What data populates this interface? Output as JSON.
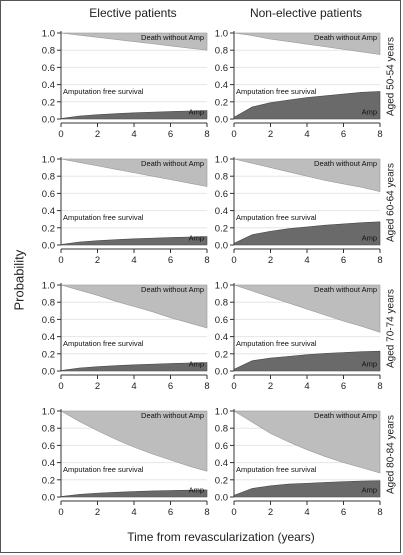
{
  "figure": {
    "ylabel": "Probability",
    "xlabel": "Time from revascularization (years)",
    "column_titles": [
      "Elective patients",
      "Non-elective patients"
    ],
    "row_titles": [
      "Aged 50-54 years",
      "Aged 60-64 years",
      "Aged 70-74 years",
      "Aged 80-84 years"
    ],
    "colors": {
      "death_band": "#bdbdbd",
      "amp_band": "#6a6a6a",
      "gridline": "#e6e6e6",
      "axis": "#333333"
    }
  },
  "chart_data": [
    {
      "type": "area",
      "column": "Elective patients",
      "row": "Aged 50-54 years",
      "x": [
        0,
        1,
        2,
        3,
        4,
        5,
        6,
        7,
        8
      ],
      "xticks": [
        0,
        2,
        4,
        6,
        8
      ],
      "yticks": [
        0.0,
        0.2,
        0.4,
        0.6,
        0.8,
        1.0
      ],
      "xlim": [
        0,
        8
      ],
      "ylim": [
        0,
        1
      ],
      "series": [
        {
          "name": "Amp",
          "values": [
            0.005,
            0.035,
            0.05,
            0.062,
            0.072,
            0.08,
            0.087,
            0.093,
            0.098
          ]
        },
        {
          "name": "Death without Amp",
          "values": [
            0.0,
            0.025,
            0.05,
            0.075,
            0.1,
            0.125,
            0.15,
            0.175,
            0.2
          ]
        }
      ],
      "labels": {
        "death": "Death without Amp",
        "middle": "Amputation free survival",
        "amp": "Amp"
      }
    },
    {
      "type": "area",
      "column": "Non-elective patients",
      "row": "Aged 50-54 years",
      "x": [
        0,
        1,
        2,
        3,
        4,
        5,
        6,
        7,
        8
      ],
      "xticks": [
        0,
        2,
        4,
        6,
        8
      ],
      "yticks": [
        0.0,
        0.2,
        0.4,
        0.6,
        0.8,
        1.0
      ],
      "xlim": [
        0,
        8
      ],
      "ylim": [
        0,
        1
      ],
      "series": [
        {
          "name": "Amp",
          "values": [
            0.02,
            0.14,
            0.19,
            0.22,
            0.25,
            0.27,
            0.29,
            0.31,
            0.32
          ]
        },
        {
          "name": "Death without Amp",
          "values": [
            0.0,
            0.03,
            0.07,
            0.1,
            0.13,
            0.16,
            0.19,
            0.22,
            0.25
          ]
        }
      ],
      "labels": {
        "death": "Death without Amp",
        "middle": "Amputation free survival",
        "amp": "Amp"
      }
    },
    {
      "type": "area",
      "column": "Elective patients",
      "row": "Aged 60-64 years",
      "x": [
        0,
        1,
        2,
        3,
        4,
        5,
        6,
        7,
        8
      ],
      "xticks": [
        0,
        2,
        4,
        6,
        8
      ],
      "yticks": [
        0.0,
        0.2,
        0.4,
        0.6,
        0.8,
        1.0
      ],
      "xlim": [
        0,
        8
      ],
      "ylim": [
        0,
        1
      ],
      "series": [
        {
          "name": "Amp",
          "values": [
            0.005,
            0.035,
            0.05,
            0.062,
            0.072,
            0.08,
            0.087,
            0.093,
            0.098
          ]
        },
        {
          "name": "Death without Amp",
          "values": [
            0.0,
            0.04,
            0.08,
            0.12,
            0.16,
            0.2,
            0.24,
            0.28,
            0.32
          ]
        }
      ],
      "labels": {
        "death": "Death without Amp",
        "middle": "Amputation free survival",
        "amp": "Amp"
      }
    },
    {
      "type": "area",
      "column": "Non-elective patients",
      "row": "Aged 60-64 years",
      "x": [
        0,
        1,
        2,
        3,
        4,
        5,
        6,
        7,
        8
      ],
      "xticks": [
        0,
        2,
        4,
        6,
        8
      ],
      "yticks": [
        0.0,
        0.2,
        0.4,
        0.6,
        0.8,
        1.0
      ],
      "xlim": [
        0,
        8
      ],
      "ylim": [
        0,
        1
      ],
      "series": [
        {
          "name": "Amp",
          "values": [
            0.02,
            0.12,
            0.16,
            0.19,
            0.21,
            0.23,
            0.245,
            0.26,
            0.27
          ]
        },
        {
          "name": "Death without Amp",
          "values": [
            0.0,
            0.05,
            0.1,
            0.15,
            0.2,
            0.25,
            0.29,
            0.33,
            0.38
          ]
        }
      ],
      "labels": {
        "death": "Death without Amp",
        "middle": "Amputation free survival",
        "amp": "Amp"
      }
    },
    {
      "type": "area",
      "column": "Elective patients",
      "row": "Aged 70-74 years",
      "x": [
        0,
        1,
        2,
        3,
        4,
        5,
        6,
        7,
        8
      ],
      "xticks": [
        0,
        2,
        4,
        6,
        8
      ],
      "yticks": [
        0.0,
        0.2,
        0.4,
        0.6,
        0.8,
        1.0
      ],
      "xlim": [
        0,
        8
      ],
      "ylim": [
        0,
        1
      ],
      "series": [
        {
          "name": "Amp",
          "values": [
            0.005,
            0.035,
            0.05,
            0.062,
            0.072,
            0.08,
            0.087,
            0.093,
            0.098
          ]
        },
        {
          "name": "Death without Amp",
          "values": [
            0.0,
            0.06,
            0.12,
            0.19,
            0.25,
            0.31,
            0.38,
            0.44,
            0.5
          ]
        }
      ],
      "labels": {
        "death": "Death without Amp",
        "middle": "Amputation free survival",
        "amp": "Amp"
      }
    },
    {
      "type": "area",
      "column": "Non-elective patients",
      "row": "Aged 70-74 years",
      "x": [
        0,
        1,
        2,
        3,
        4,
        5,
        6,
        7,
        8
      ],
      "xticks": [
        0,
        2,
        4,
        6,
        8
      ],
      "yticks": [
        0.0,
        0.2,
        0.4,
        0.6,
        0.8,
        1.0
      ],
      "xlim": [
        0,
        8
      ],
      "ylim": [
        0,
        1
      ],
      "series": [
        {
          "name": "Amp",
          "values": [
            0.02,
            0.12,
            0.15,
            0.17,
            0.19,
            0.205,
            0.215,
            0.225,
            0.23
          ]
        },
        {
          "name": "Death without Amp",
          "values": [
            0.0,
            0.07,
            0.14,
            0.21,
            0.28,
            0.35,
            0.42,
            0.48,
            0.55
          ]
        }
      ],
      "labels": {
        "death": "Death without Amp",
        "middle": "Amputation free survival",
        "amp": "Amp"
      }
    },
    {
      "type": "area",
      "column": "Elective patients",
      "row": "Aged 80-84 years",
      "x": [
        0,
        1,
        2,
        3,
        4,
        5,
        6,
        7,
        8
      ],
      "xticks": [
        0,
        2,
        4,
        6,
        8
      ],
      "yticks": [
        0.0,
        0.2,
        0.4,
        0.6,
        0.8,
        1.0
      ],
      "xlim": [
        0,
        8
      ],
      "ylim": [
        0,
        1
      ],
      "series": [
        {
          "name": "Amp",
          "values": [
            0.005,
            0.03,
            0.045,
            0.055,
            0.063,
            0.07,
            0.075,
            0.079,
            0.082
          ]
        },
        {
          "name": "Death without Amp",
          "values": [
            0.0,
            0.12,
            0.23,
            0.33,
            0.42,
            0.5,
            0.57,
            0.64,
            0.7
          ]
        }
      ],
      "labels": {
        "death": "Death without Amp",
        "middle": "Amputation free survival",
        "amp": "Amp"
      }
    },
    {
      "type": "area",
      "column": "Non-elective patients",
      "row": "Aged 80-84 years",
      "x": [
        0,
        1,
        2,
        3,
        4,
        5,
        6,
        7,
        8
      ],
      "xticks": [
        0,
        2,
        4,
        6,
        8
      ],
      "yticks": [
        0.0,
        0.2,
        0.4,
        0.6,
        0.8,
        1.0
      ],
      "xlim": [
        0,
        8
      ],
      "ylim": [
        0,
        1
      ],
      "series": [
        {
          "name": "Amp",
          "values": [
            0.02,
            0.1,
            0.13,
            0.15,
            0.16,
            0.17,
            0.178,
            0.185,
            0.19
          ]
        },
        {
          "name": "Death without Amp",
          "values": [
            0.0,
            0.13,
            0.26,
            0.36,
            0.45,
            0.53,
            0.6,
            0.66,
            0.72
          ]
        }
      ],
      "labels": {
        "death": "Death without Amp",
        "middle": "Amputation free survival",
        "amp": "Amp"
      }
    }
  ]
}
